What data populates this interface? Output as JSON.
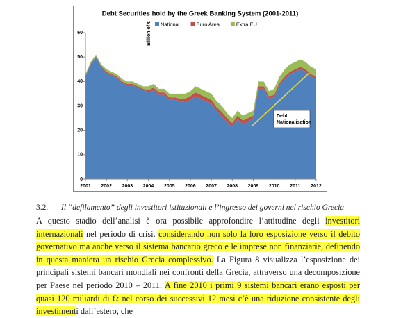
{
  "chart_data": {
    "type": "stacked-area",
    "title": "Debt Securities hold by the Greek Banking System (2001-2011)",
    "y_label": "Billion of €",
    "x": [
      2001,
      2001.25,
      2001.5,
      2001.75,
      2002,
      2002.25,
      2002.5,
      2002.75,
      2003,
      2003.25,
      2003.5,
      2003.75,
      2004,
      2004.25,
      2004.5,
      2004.75,
      2005,
      2005.25,
      2005.5,
      2005.75,
      2006,
      2006.25,
      2006.5,
      2006.75,
      2007,
      2007.25,
      2007.5,
      2007.75,
      2008,
      2008.25,
      2008.5,
      2008.75,
      2009,
      2009.25,
      2009.5,
      2009.75,
      2010,
      2010.25,
      2010.5,
      2010.75,
      2011,
      2011.25,
      2011.5,
      2011.75,
      2012
    ],
    "series": [
      {
        "name": "National",
        "color": "#4f81bd",
        "values": [
          42,
          47,
          50,
          46,
          43.5,
          42.5,
          41.5,
          39.5,
          38.5,
          38.5,
          37.5,
          36.5,
          35.5,
          36.5,
          34.5,
          34.5,
          32.5,
          32.5,
          32,
          31.5,
          32.5,
          34,
          33,
          32,
          31,
          28,
          26,
          23.5,
          21.5,
          24.5,
          22.5,
          23.5,
          25,
          37,
          37,
          33,
          33.5,
          38.5,
          41,
          43,
          44,
          45,
          44,
          42,
          41
        ]
      },
      {
        "name": "Euro Area",
        "color": "#c0504d",
        "values": [
          0.3,
          0.3,
          0.3,
          0.3,
          0.5,
          0.5,
          0.5,
          0.5,
          0.5,
          0.5,
          0.5,
          0.5,
          1,
          1,
          1,
          1,
          1,
          1,
          1,
          1.5,
          1.5,
          1.5,
          1.5,
          1.5,
          1.5,
          1.5,
          1.5,
          1.5,
          1.5,
          1.5,
          1.5,
          1.5,
          1,
          1,
          1,
          1,
          1,
          1,
          1,
          1,
          1,
          1,
          1,
          1,
          1
        ]
      },
      {
        "name": "Extra EU",
        "color": "#9bbb59",
        "values": [
          0.7,
          0.7,
          0.7,
          0.7,
          1,
          1,
          1,
          1,
          1,
          1,
          1,
          1,
          1.5,
          1.5,
          1.5,
          1.5,
          1.5,
          1.5,
          2,
          2,
          2,
          2.5,
          2.5,
          2.5,
          2.5,
          2.5,
          2.5,
          2,
          2,
          2,
          2,
          2,
          2,
          2,
          2,
          2,
          2.5,
          2.5,
          3,
          3,
          3,
          3,
          3,
          3,
          3
        ]
      }
    ],
    "xlim": [
      2001,
      2012
    ],
    "xticks": [
      2001,
      2002,
      2003,
      2004,
      2005,
      2006,
      2007,
      2008,
      2009,
      2010,
      2011,
      2012
    ],
    "ylim": [
      0,
      60
    ],
    "yticks": [
      0,
      10,
      20,
      30,
      40,
      50,
      60
    ],
    "legend": "top",
    "annotation": "Debt Nationalisation"
  },
  "section": {
    "number": "3.2.",
    "title": "Il “defilamento” degli investitori istituzionali e l’ingresso dei governi nel rischio Grecia"
  },
  "paragraph": [
    {
      "text": "A questo stadio dell’analisi è ora possibile approfondire l’attitudine degli ",
      "highlighted": false
    },
    {
      "text": "investitori internazionali",
      "highlighted": true
    },
    {
      "text": " nel periodo di crisi, ",
      "highlighted": false
    },
    {
      "text": "considerando non solo la loro esposizione verso il debito governativo ma anche verso il sistema bancario greco e le imprese non finanziarie, definendo in questa maniera un rischio Grecia complessivo.",
      "highlighted": true
    },
    {
      "text": " La Figura 8 visualizza l’esposizione dei principali sistemi bancari mondiali nei confronti della Grecia, attraverso una decomposizione per Paese nel periodo 2010 – 2011. ",
      "highlighted": false
    },
    {
      "text": "A fine 2010 i primi 9 sistemi bancari erano esposti per quasi 120 miliardi di €: nel corso dei successivi 12 mesi c’è una riduzione consistente degli investiment",
      "highlighted": true
    },
    {
      "text": "i dall’estero, che",
      "highlighted": false
    }
  ]
}
